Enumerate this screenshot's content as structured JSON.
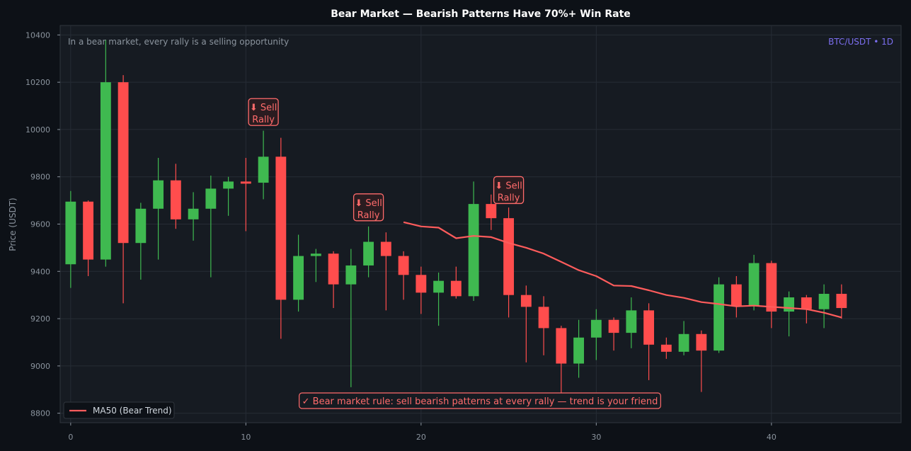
{
  "chart_data": {
    "type": "candlestick",
    "title": "Bear Market — Bearish Patterns Have 70%+ Win Rate",
    "subtitle": "In a bear market, every rally is a selling opportunity",
    "symbol_label": "BTC/USDT • 1D",
    "xlabel": "",
    "ylabel": "Price (USDT)",
    "xlim": [
      -0.6,
      47.4
    ],
    "ylim": [
      8760,
      10440
    ],
    "x_ticks": [
      0,
      10,
      20,
      30,
      40
    ],
    "y_ticks": [
      8800,
      9000,
      9200,
      9400,
      9600,
      9800,
      10000,
      10200,
      10400
    ],
    "grid": true,
    "legend_position": "bottom-left",
    "colors": {
      "up": "#3fb950",
      "down": "#ff4d4d",
      "ma": "#ff5c5c",
      "accent": "#7c6ff0",
      "annotation": "#ff6b6b"
    },
    "candles": [
      {
        "x": 0,
        "open": 9430,
        "high": 9740,
        "low": 9330,
        "close": 9695
      },
      {
        "x": 1,
        "open": 9695,
        "high": 9700,
        "low": 9380,
        "close": 9450
      },
      {
        "x": 2,
        "open": 9450,
        "high": 10380,
        "low": 9420,
        "close": 10200
      },
      {
        "x": 3,
        "open": 10200,
        "high": 10230,
        "low": 9265,
        "close": 9520
      },
      {
        "x": 4,
        "open": 9520,
        "high": 9690,
        "low": 9365,
        "close": 9665
      },
      {
        "x": 5,
        "open": 9665,
        "high": 9880,
        "low": 9450,
        "close": 9785
      },
      {
        "x": 6,
        "open": 9785,
        "high": 9855,
        "low": 9580,
        "close": 9620
      },
      {
        "x": 7,
        "open": 9620,
        "high": 9735,
        "low": 9530,
        "close": 9665
      },
      {
        "x": 8,
        "open": 9665,
        "high": 9805,
        "low": 9375,
        "close": 9750
      },
      {
        "x": 9,
        "open": 9750,
        "high": 9800,
        "low": 9635,
        "close": 9780
      },
      {
        "x": 10,
        "open": 9780,
        "high": 9880,
        "low": 9570,
        "close": 9775
      },
      {
        "x": 11,
        "open": 9775,
        "high": 9995,
        "low": 9705,
        "close": 9885
      },
      {
        "x": 12,
        "open": 9885,
        "high": 9965,
        "low": 9115,
        "close": 9280
      },
      {
        "x": 13,
        "open": 9280,
        "high": 9555,
        "low": 9230,
        "close": 9465
      },
      {
        "x": 14,
        "open": 9465,
        "high": 9495,
        "low": 9355,
        "close": 9475
      },
      {
        "x": 15,
        "open": 9475,
        "high": 9485,
        "low": 9245,
        "close": 9345
      },
      {
        "x": 16,
        "open": 9345,
        "high": 9495,
        "low": 8910,
        "close": 9425
      },
      {
        "x": 17,
        "open": 9425,
        "high": 9590,
        "low": 9375,
        "close": 9525
      },
      {
        "x": 18,
        "open": 9525,
        "high": 9565,
        "low": 9235,
        "close": 9465
      },
      {
        "x": 19,
        "open": 9465,
        "high": 9485,
        "low": 9280,
        "close": 9385
      },
      {
        "x": 20,
        "open": 9385,
        "high": 9420,
        "low": 9220,
        "close": 9310
      },
      {
        "x": 21,
        "open": 9310,
        "high": 9395,
        "low": 9170,
        "close": 9360
      },
      {
        "x": 22,
        "open": 9360,
        "high": 9420,
        "low": 9285,
        "close": 9295
      },
      {
        "x": 23,
        "open": 9295,
        "high": 9780,
        "low": 9275,
        "close": 9685
      },
      {
        "x": 24,
        "open": 9685,
        "high": 9725,
        "low": 9575,
        "close": 9625
      },
      {
        "x": 25,
        "open": 9625,
        "high": 9670,
        "low": 9205,
        "close": 9300
      },
      {
        "x": 26,
        "open": 9300,
        "high": 9340,
        "low": 9015,
        "close": 9250
      },
      {
        "x": 27,
        "open": 9250,
        "high": 9295,
        "low": 9045,
        "close": 9160
      },
      {
        "x": 28,
        "open": 9160,
        "high": 9170,
        "low": 8865,
        "close": 9010
      },
      {
        "x": 29,
        "open": 9010,
        "high": 9195,
        "low": 8950,
        "close": 9120
      },
      {
        "x": 30,
        "open": 9120,
        "high": 9240,
        "low": 9025,
        "close": 9195
      },
      {
        "x": 31,
        "open": 9195,
        "high": 9205,
        "low": 9065,
        "close": 9140
      },
      {
        "x": 32,
        "open": 9140,
        "high": 9290,
        "low": 9075,
        "close": 9235
      },
      {
        "x": 33,
        "open": 9235,
        "high": 9265,
        "low": 8940,
        "close": 9090
      },
      {
        "x": 34,
        "open": 9090,
        "high": 9120,
        "low": 9030,
        "close": 9060
      },
      {
        "x": 35,
        "open": 9060,
        "high": 9190,
        "low": 9045,
        "close": 9135
      },
      {
        "x": 36,
        "open": 9135,
        "high": 9150,
        "low": 8890,
        "close": 9065
      },
      {
        "x": 37,
        "open": 9065,
        "high": 9375,
        "low": 9055,
        "close": 9345
      },
      {
        "x": 38,
        "open": 9345,
        "high": 9380,
        "low": 9205,
        "close": 9255
      },
      {
        "x": 39,
        "open": 9255,
        "high": 9470,
        "low": 9235,
        "close": 9435
      },
      {
        "x": 40,
        "open": 9435,
        "high": 9445,
        "low": 9160,
        "close": 9230
      },
      {
        "x": 41,
        "open": 9230,
        "high": 9315,
        "low": 9125,
        "close": 9290
      },
      {
        "x": 42,
        "open": 9290,
        "high": 9300,
        "low": 9180,
        "close": 9240
      },
      {
        "x": 43,
        "open": 9240,
        "high": 9345,
        "low": 9160,
        "close": 9305
      },
      {
        "x": 44,
        "open": 9305,
        "high": 9345,
        "low": 9200,
        "close": 9245
      }
    ],
    "series": [
      {
        "name": "MA50 (Bear Trend)",
        "x": [
          19,
          20,
          21,
          22,
          23,
          24,
          25,
          26,
          27,
          28,
          29,
          30,
          31,
          32,
          33,
          34,
          35,
          36,
          37,
          38,
          39,
          40,
          41,
          42,
          43,
          44
        ],
        "values": [
          9608,
          9590,
          9585,
          9540,
          9550,
          9545,
          9520,
          9500,
          9475,
          9440,
          9405,
          9380,
          9340,
          9338,
          9320,
          9300,
          9288,
          9270,
          9262,
          9252,
          9255,
          9250,
          9245,
          9240,
          9225,
          9205
        ]
      }
    ],
    "annotations": [
      {
        "text": "⬇ Sell\nRally",
        "x": 11,
        "y": 10068
      },
      {
        "text": "⬇ Sell\nRally",
        "x": 17,
        "y": 9665
      },
      {
        "text": "⬇ Sell\nRally",
        "x": 25,
        "y": 9738
      }
    ],
    "footer_note": "✓ Bear market rule: sell bearish patterns at every rally — trend is your friend"
  }
}
